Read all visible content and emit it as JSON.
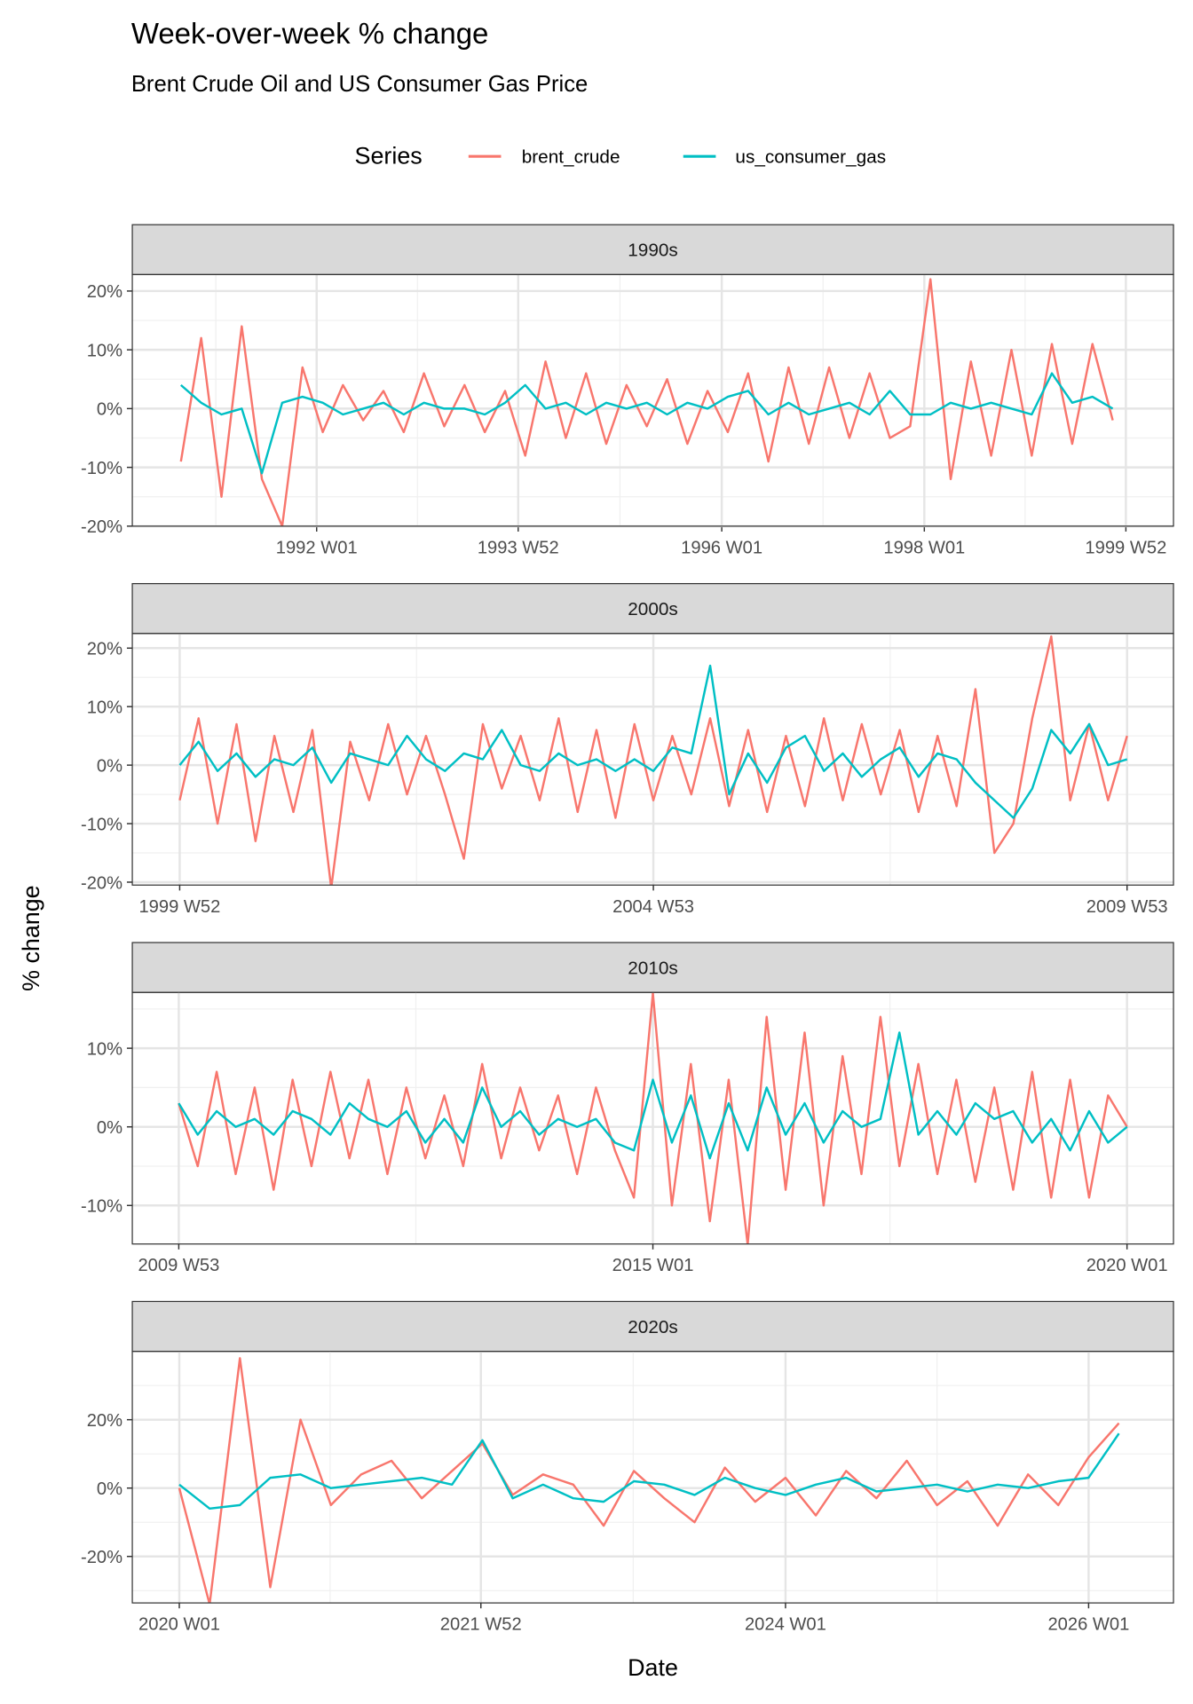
{
  "chart_data": {
    "type": "line",
    "title": "Week-over-week % change",
    "subtitle": "Brent Crude Oil and US Consumer Gas Price",
    "xlabel": "Date",
    "ylabel": "% change",
    "legend": {
      "title": "Series",
      "placement": "top",
      "entries": [
        "brent_crude",
        "us_consumer_gas"
      ]
    },
    "colors": {
      "brent_crude": "#F8766D",
      "us_consumer_gas": "#00BFC4"
    },
    "grid": true,
    "facets": [
      {
        "label": "1990s",
        "xlim": [
          1990.18,
          2000.46
        ],
        "ylim": [
          -20,
          22.8
        ],
        "x_ticks": [
          {
            "x": 1992.0,
            "label": "1992 W01"
          },
          {
            "x": 1993.99,
            "label": "1993 W52"
          },
          {
            "x": 1996.0,
            "label": "1996 W01"
          },
          {
            "x": 1998.0,
            "label": "1998 W01"
          },
          {
            "x": 1999.99,
            "label": "1999 W52"
          }
        ],
        "y_ticks": [
          {
            "y": -20,
            "label": "-20%"
          },
          {
            "y": -10,
            "label": "-10%"
          },
          {
            "y": 0,
            "label": "0%"
          },
          {
            "y": 10,
            "label": "10%"
          },
          {
            "y": 20,
            "label": "20%"
          }
        ],
        "x_start": 1990.66,
        "x_step": 0.2,
        "series": [
          {
            "name": "brent_crude",
            "values": [
              -9,
              12,
              -15,
              14,
              -12,
              -20,
              7,
              -4,
              4,
              -2,
              3,
              -4,
              6,
              -3,
              4,
              -4,
              3,
              -8,
              8,
              -5,
              6,
              -6,
              4,
              -3,
              5,
              -6,
              3,
              -4,
              6,
              -9,
              7,
              -6,
              7,
              -5,
              6,
              -5,
              -3,
              22,
              -12,
              8,
              -8,
              10,
              -8,
              11,
              -6,
              11,
              -2
            ]
          },
          {
            "name": "us_consumer_gas",
            "values": [
              4,
              1,
              -1,
              0,
              -11,
              1,
              2,
              1,
              -1,
              0,
              1,
              -1,
              1,
              0,
              0,
              -1,
              1,
              4,
              0,
              1,
              -1,
              1,
              0,
              1,
              -1,
              1,
              0,
              2,
              3,
              -1,
              1,
              -1,
              0,
              1,
              -1,
              3,
              -1,
              -1,
              1,
              0,
              1,
              0,
              -1,
              6,
              1,
              2,
              0
            ]
          }
        ]
      },
      {
        "label": "2000s",
        "xlim": [
          1999.5,
          2010.49
        ],
        "ylim": [
          -20.5,
          22.5
        ],
        "x_ticks": [
          {
            "x": 2000.0,
            "label": "1999 W52"
          },
          {
            "x": 2005.0,
            "label": "2004 W53"
          },
          {
            "x": 2010.0,
            "label": "2009 W53"
          }
        ],
        "y_ticks": [
          {
            "y": -20,
            "label": "-20%"
          },
          {
            "y": -10,
            "label": "-10%"
          },
          {
            "y": 0,
            "label": "0%"
          },
          {
            "y": 10,
            "label": "10%"
          },
          {
            "y": 20,
            "label": "20%"
          }
        ],
        "x_start": 2000.0,
        "x_step": 0.2,
        "series": [
          {
            "name": "brent_crude",
            "values": [
              -6,
              8,
              -10,
              7,
              -13,
              5,
              -8,
              6,
              -21,
              4,
              -6,
              7,
              -5,
              5,
              -5,
              -16,
              7,
              -4,
              5,
              -6,
              8,
              -8,
              6,
              -9,
              7,
              -6,
              5,
              -5,
              8,
              -7,
              6,
              -8,
              5,
              -7,
              8,
              -6,
              7,
              -5,
              6,
              -8,
              5,
              -7,
              13,
              -15,
              -10,
              8,
              22,
              -6,
              7,
              -6,
              5
            ]
          },
          {
            "name": "us_consumer_gas",
            "values": [
              0,
              4,
              -1,
              2,
              -2,
              1,
              0,
              3,
              -3,
              2,
              1,
              0,
              5,
              1,
              -1,
              2,
              1,
              6,
              0,
              -1,
              2,
              0,
              1,
              -1,
              1,
              -1,
              3,
              2,
              17,
              -5,
              2,
              -3,
              3,
              5,
              -1,
              2,
              -2,
              1,
              3,
              -2,
              2,
              1,
              -3,
              -6,
              -9,
              -4,
              6,
              2,
              7,
              0,
              1
            ]
          }
        ]
      },
      {
        "label": "2010s",
        "xlim": [
          2009.51,
          2020.49
        ],
        "ylim": [
          -14.9,
          17.1
        ],
        "x_ticks": [
          {
            "x": 2010.0,
            "label": "2009 W53"
          },
          {
            "x": 2015.0,
            "label": "2015 W01"
          },
          {
            "x": 2020.0,
            "label": "2020 W01"
          }
        ],
        "y_ticks": [
          {
            "y": -10,
            "label": "-10%"
          },
          {
            "y": 0,
            "label": "0%"
          },
          {
            "y": 10,
            "label": "10%"
          }
        ],
        "x_start": 2010.0,
        "x_step": 0.2,
        "series": [
          {
            "name": "brent_crude",
            "values": [
              3,
              -5,
              7,
              -6,
              5,
              -8,
              6,
              -5,
              7,
              -4,
              6,
              -6,
              5,
              -4,
              4,
              -5,
              8,
              -4,
              5,
              -3,
              4,
              -6,
              5,
              -3,
              -9,
              17,
              -10,
              8,
              -12,
              6,
              -15,
              14,
              -8,
              12,
              -10,
              9,
              -6,
              14,
              -5,
              8,
              -6,
              6,
              -7,
              5,
              -8,
              7,
              -9,
              6,
              -9,
              4,
              0
            ]
          },
          {
            "name": "us_consumer_gas",
            "values": [
              3,
              -1,
              2,
              0,
              1,
              -1,
              2,
              1,
              -1,
              3,
              1,
              0,
              2,
              -2,
              1,
              -2,
              5,
              0,
              2,
              -1,
              1,
              0,
              1,
              -2,
              -3,
              6,
              -2,
              4,
              -4,
              3,
              -3,
              5,
              -1,
              3,
              -2,
              2,
              0,
              1,
              12,
              -1,
              2,
              -1,
              3,
              1,
              2,
              -2,
              1,
              -3,
              2,
              -2,
              0
            ]
          }
        ]
      },
      {
        "label": "2020s",
        "xlim": [
          2019.69,
          2026.56
        ],
        "ylim": [
          -33.6,
          40
        ],
        "x_ticks": [
          {
            "x": 2020.0,
            "label": "2020 W01"
          },
          {
            "x": 2021.99,
            "label": "2021 W52"
          },
          {
            "x": 2024.0,
            "label": "2024 W01"
          },
          {
            "x": 2026.0,
            "label": "2026 W01"
          }
        ],
        "y_ticks": [
          {
            "y": -20,
            "label": "-20%"
          },
          {
            "y": 0,
            "label": "0%"
          },
          {
            "y": 20,
            "label": "20%"
          }
        ],
        "x_start": 2020.0,
        "x_step": 0.2,
        "series": [
          {
            "name": "brent_crude",
            "values": [
              0,
              -34,
              38,
              -29,
              20,
              -5,
              4,
              8,
              -3,
              5,
              13,
              -2,
              4,
              1,
              -11,
              5,
              -3,
              -10,
              6,
              -4,
              3,
              -8,
              5,
              -3,
              8,
              -5,
              2,
              -11,
              4,
              -5,
              9,
              19
            ]
          },
          {
            "name": "us_consumer_gas",
            "values": [
              1,
              -6,
              -5,
              3,
              4,
              0,
              1,
              2,
              3,
              1,
              14,
              -3,
              1,
              -3,
              -4,
              2,
              1,
              -2,
              3,
              0,
              -2,
              1,
              3,
              -1,
              0,
              1,
              -1,
              1,
              0,
              2,
              3,
              16
            ]
          }
        ]
      }
    ]
  }
}
